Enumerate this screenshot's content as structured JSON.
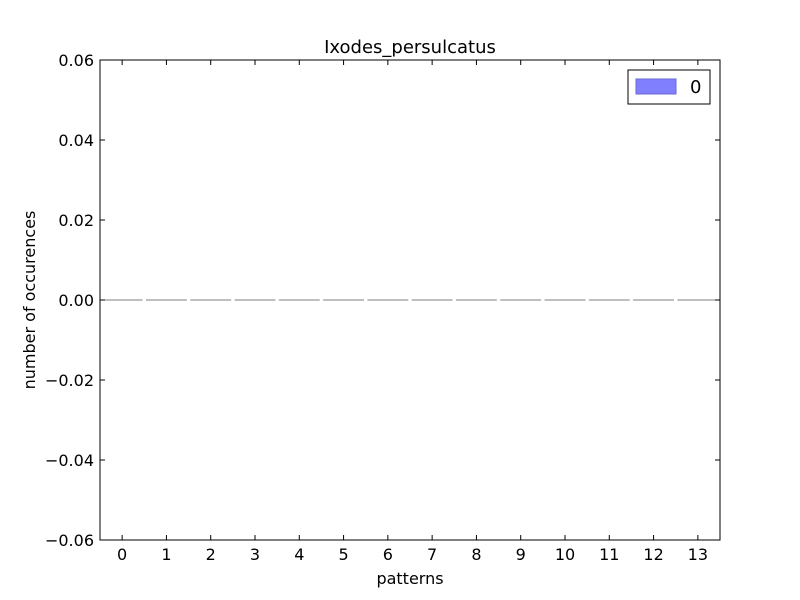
{
  "chart_data": {
    "type": "bar",
    "title": "Ixodes_persulcatus",
    "xlabel": "patterns",
    "ylabel": "number of occurences",
    "categories": [
      "0",
      "1",
      "2",
      "3",
      "4",
      "5",
      "6",
      "7",
      "8",
      "9",
      "10",
      "11",
      "12",
      "13"
    ],
    "series": [
      {
        "name": "0",
        "values": [
          0,
          0,
          0,
          0,
          0,
          0,
          0,
          0,
          0,
          0,
          0,
          0,
          0,
          0
        ]
      }
    ],
    "ylim": [
      -0.06,
      0.06
    ],
    "yticks": [
      -0.06,
      -0.04,
      -0.02,
      0.0,
      0.02,
      0.04,
      0.06
    ],
    "ytick_labels": [
      "−0.06",
      "−0.04",
      "−0.02",
      "0.00",
      "0.02",
      "0.04",
      "0.06"
    ],
    "grid": false,
    "legend_position": "top-right",
    "colors": {
      "series": "#8080ff",
      "series_edge": "#6a6ad0",
      "bar_edge": "#808080",
      "axes": "#000000"
    }
  }
}
